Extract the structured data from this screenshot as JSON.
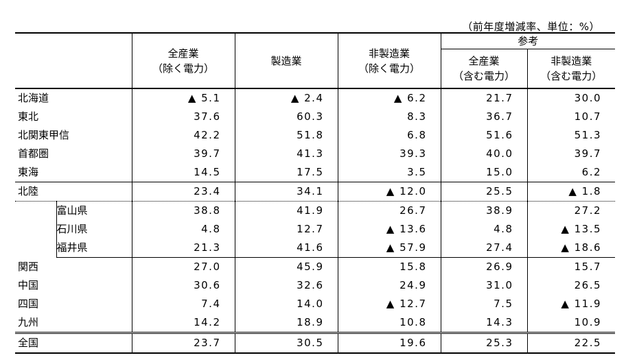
{
  "unit_note": "（前年度増減率、単位：%）",
  "header": {
    "col1": [
      "全産業",
      "（除く電力）"
    ],
    "col2": [
      "製造業"
    ],
    "col3": [
      "非製造業",
      "（除く電力）"
    ],
    "reference": "参考",
    "col4": [
      "全産業",
      "（含む電力）"
    ],
    "col5": [
      "非製造業",
      "（含む電力）"
    ]
  },
  "rows": [
    {
      "name": "北海道",
      "values": [
        "▲ 5.1",
        "▲ 2.4",
        "▲ 6.2",
        "21.7",
        "30.0"
      ]
    },
    {
      "name": "東北",
      "values": [
        "37.6",
        "60.3",
        "8.3",
        "36.7",
        "10.7"
      ]
    },
    {
      "name": "北関東甲信",
      "values": [
        "42.2",
        "51.8",
        "6.8",
        "51.6",
        "51.3"
      ]
    },
    {
      "name": "首都圏",
      "values": [
        "39.7",
        "41.3",
        "39.3",
        "40.0",
        "39.7"
      ]
    },
    {
      "name": "東海",
      "values": [
        "14.5",
        "17.5",
        "3.5",
        "15.0",
        "6.2"
      ]
    },
    {
      "name": "北陸",
      "values": [
        "23.4",
        "34.1",
        "▲ 12.0",
        "25.5",
        "▲ 1.8"
      ]
    },
    {
      "name": "富山県",
      "sub": true,
      "values": [
        "38.8",
        "41.9",
        "26.7",
        "38.9",
        "27.2"
      ]
    },
    {
      "name": "石川県",
      "sub": true,
      "values": [
        "4.8",
        "12.7",
        "▲ 13.6",
        "4.8",
        "▲ 13.5"
      ]
    },
    {
      "name": "福井県",
      "sub": true,
      "values": [
        "21.3",
        "41.6",
        "▲ 57.9",
        "27.4",
        "▲ 18.6"
      ]
    },
    {
      "name": "関西",
      "values": [
        "27.0",
        "45.9",
        "15.8",
        "26.9",
        "15.7"
      ]
    },
    {
      "name": "中国",
      "values": [
        "30.6",
        "32.6",
        "24.9",
        "31.0",
        "26.5"
      ]
    },
    {
      "name": "四国",
      "values": [
        "7.4",
        "14.0",
        "▲ 12.7",
        "7.5",
        "▲ 11.9"
      ]
    },
    {
      "name": "九州",
      "values": [
        "14.2",
        "18.9",
        "10.8",
        "14.3",
        "10.9"
      ]
    },
    {
      "name": "全国",
      "values": [
        "23.7",
        "30.5",
        "19.6",
        "25.3",
        "22.5"
      ]
    }
  ]
}
